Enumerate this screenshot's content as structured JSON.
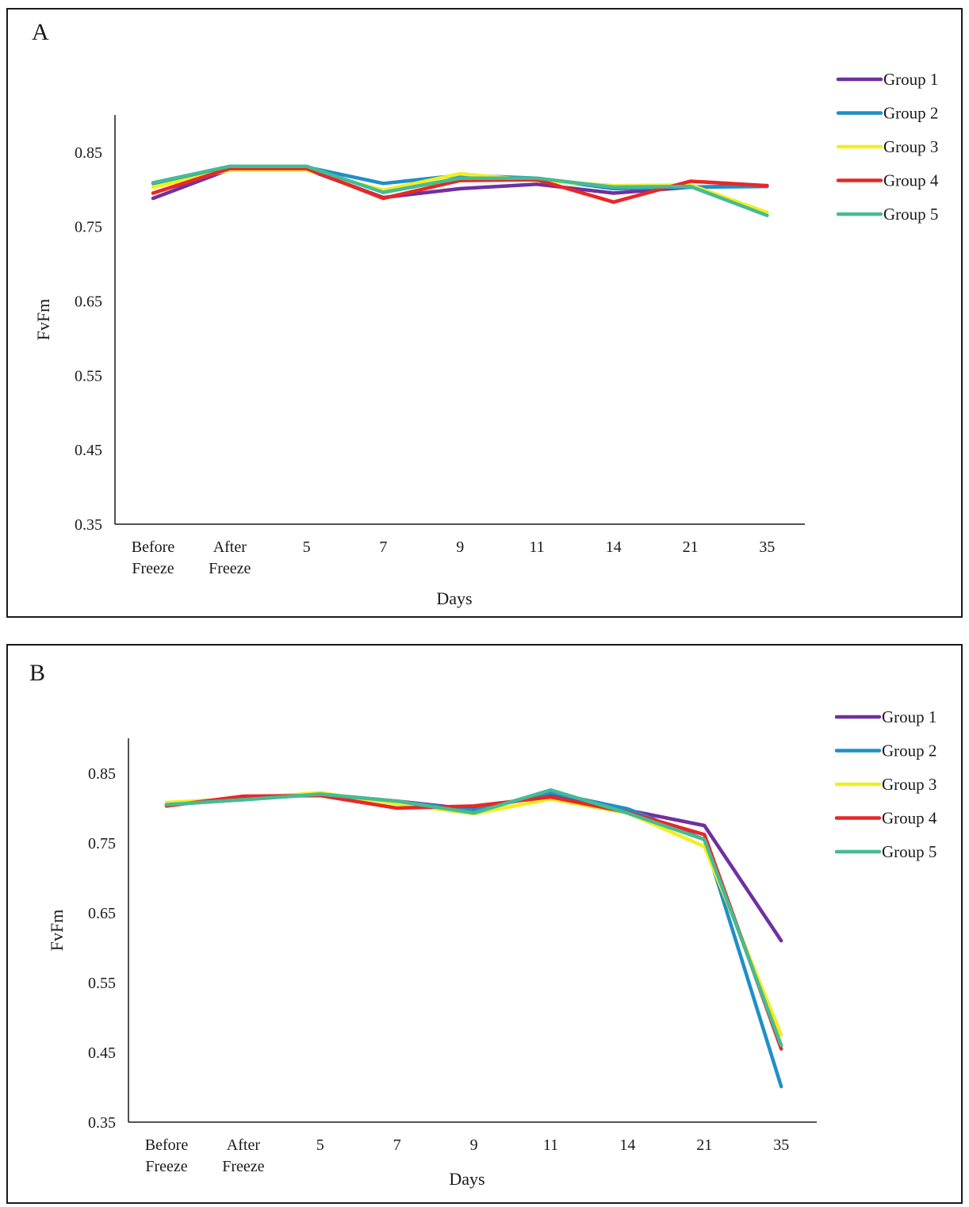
{
  "colors": {
    "group1": "#7030a0",
    "group2": "#1f8fc8",
    "group3": "#f2ee21",
    "group4": "#e82727",
    "group5": "#45bb95",
    "axis": "#1a1a1a"
  },
  "chart_data": [
    {
      "panel": "A",
      "type": "line",
      "xlabel": "Days",
      "ylabel": "FvFm",
      "ylim": [
        0.35,
        0.9
      ],
      "yticks": [
        "0.85",
        "0.75",
        "0.65",
        "0.55",
        "0.45",
        "0.35"
      ],
      "categories": [
        [
          "Before",
          "Freeze"
        ],
        [
          "After",
          "Freeze"
        ],
        [
          "5"
        ],
        [
          "7"
        ],
        [
          "9"
        ],
        [
          "11"
        ],
        [
          "14"
        ],
        [
          "21"
        ],
        [
          "35"
        ]
      ],
      "legend_position": "right",
      "series": [
        {
          "name": "Group 1",
          "color": "#7030a0",
          "values": [
            0.788,
            0.827,
            0.827,
            0.789,
            0.801,
            0.807,
            0.795,
            0.803,
            0.805
          ]
        },
        {
          "name": "Group 2",
          "color": "#1f8fc8",
          "values": [
            0.808,
            0.83,
            0.83,
            0.808,
            0.819,
            0.815,
            0.801,
            0.803,
            0.804
          ]
        },
        {
          "name": "Group 3",
          "color": "#f2ee21",
          "values": [
            0.803,
            0.826,
            0.826,
            0.799,
            0.821,
            0.812,
            0.805,
            0.806,
            0.769
          ]
        },
        {
          "name": "Group 4",
          "color": "#e82727",
          "values": [
            0.795,
            0.828,
            0.828,
            0.788,
            0.812,
            0.813,
            0.783,
            0.811,
            0.805
          ]
        },
        {
          "name": "Group 5",
          "color": "#45bb95",
          "values": [
            0.809,
            0.831,
            0.831,
            0.796,
            0.815,
            0.815,
            0.803,
            0.804,
            0.765
          ]
        }
      ]
    },
    {
      "panel": "B",
      "type": "line",
      "xlabel": "Days",
      "ylabel": "FvFm",
      "ylim": [
        0.35,
        0.9
      ],
      "yticks": [
        "0.85",
        "0.75",
        "0.65",
        "0.55",
        "0.45",
        "0.35"
      ],
      "categories": [
        [
          "Before",
          "Freeze"
        ],
        [
          "After",
          "Freeze"
        ],
        [
          "5"
        ],
        [
          "7"
        ],
        [
          "9"
        ],
        [
          "11"
        ],
        [
          "14"
        ],
        [
          "21"
        ],
        [
          "35"
        ]
      ],
      "legend_position": "right",
      "series": [
        {
          "name": "Group 1",
          "color": "#7030a0",
          "values": [
            0.805,
            0.813,
            0.82,
            0.81,
            0.798,
            0.82,
            0.797,
            0.775,
            0.61
          ]
        },
        {
          "name": "Group 2",
          "color": "#1f8fc8",
          "values": [
            0.805,
            0.812,
            0.82,
            0.809,
            0.797,
            0.822,
            0.799,
            0.755,
            0.401
          ]
        },
        {
          "name": "Group 3",
          "color": "#f2ee21",
          "values": [
            0.808,
            0.814,
            0.822,
            0.806,
            0.792,
            0.813,
            0.793,
            0.745,
            0.475
          ]
        },
        {
          "name": "Group 4",
          "color": "#e82727",
          "values": [
            0.803,
            0.817,
            0.818,
            0.8,
            0.803,
            0.816,
            0.794,
            0.762,
            0.455
          ]
        },
        {
          "name": "Group 5",
          "color": "#45bb95",
          "values": [
            0.805,
            0.812,
            0.82,
            0.81,
            0.793,
            0.826,
            0.793,
            0.755,
            0.46
          ]
        }
      ]
    }
  ],
  "panels": {
    "a_label": "A",
    "b_label": "B"
  }
}
